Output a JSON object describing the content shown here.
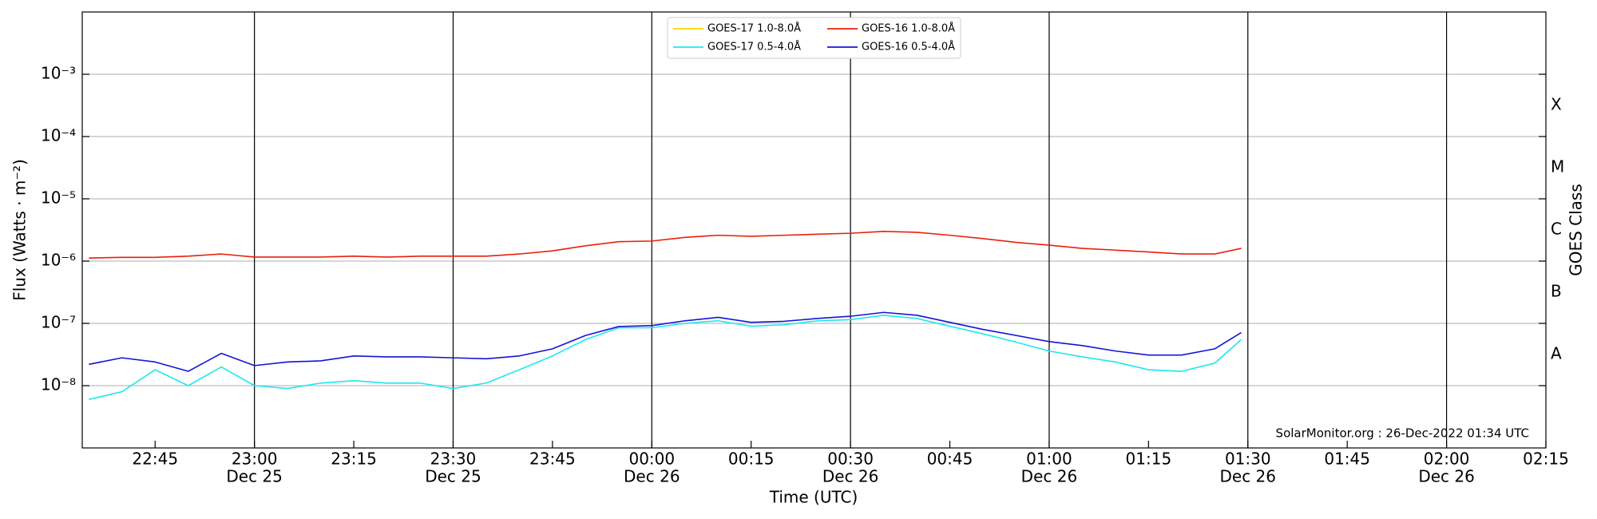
{
  "chart_data": {
    "type": "line",
    "yscale": "log",
    "ylabel": "Flux (Watts · m⁻²)",
    "xlabel": "Time (UTC)",
    "y2label": "GOES Class",
    "goes_classes": [
      "A",
      "B",
      "C",
      "M",
      "X"
    ],
    "annotation": "SolarMonitor.org : 26-Dec-2022 01:34 UTC",
    "legend": "upper center",
    "grid": true,
    "xlim": [
      "Dec 25 22:34",
      "Dec 26 02:15"
    ],
    "ylim": [
      1e-09,
      0.01
    ],
    "yticks": [
      {
        "value": 1e-08,
        "label": "10⁻⁸"
      },
      {
        "value": 1e-07,
        "label": "10⁻⁷"
      },
      {
        "value": 1e-06,
        "label": "10⁻⁶"
      },
      {
        "value": 1e-05,
        "label": "10⁻⁵"
      },
      {
        "value": 0.0001,
        "label": "10⁻⁴"
      },
      {
        "value": 0.001,
        "label": "10⁻³"
      }
    ],
    "xticks": [
      {
        "value": "Dec 25 22:45",
        "label": "22:45"
      },
      {
        "value": "Dec 25 23:00",
        "label": "23:00"
      },
      {
        "value": "Dec 25 23:15",
        "label": "23:15"
      },
      {
        "value": "Dec 25 23:30",
        "label": "23:30"
      },
      {
        "value": "Dec 25 23:45",
        "label": "23:45"
      },
      {
        "value": "Dec 26 00:00",
        "label": "00:00"
      },
      {
        "value": "Dec 26 00:15",
        "label": "00:15"
      },
      {
        "value": "Dec 26 00:30",
        "label": "00:30"
      },
      {
        "value": "Dec 26 00:45",
        "label": "00:45"
      },
      {
        "value": "Dec 26 01:00",
        "label": "01:00"
      },
      {
        "value": "Dec 26 01:15",
        "label": "01:15"
      },
      {
        "value": "Dec 26 01:30",
        "label": "01:30"
      },
      {
        "value": "Dec 26 01:45",
        "label": "01:45"
      },
      {
        "value": "Dec 26 02:00",
        "label": "02:00"
      },
      {
        "value": "Dec 26 02:15",
        "label": "02:15"
      }
    ],
    "xtick_dates": [
      null,
      "Dec 25",
      null,
      "Dec 25",
      null,
      "Dec 26",
      null,
      "Dec 26",
      null,
      "Dec 26",
      null,
      "Dec 26",
      null,
      "Dec 26",
      null
    ],
    "x": [
      "Dec 25 22:35",
      "Dec 25 22:40",
      "Dec 25 22:45",
      "Dec 25 22:50",
      "Dec 25 22:55",
      "Dec 25 23:00",
      "Dec 25 23:05",
      "Dec 25 23:10",
      "Dec 25 23:15",
      "Dec 25 23:20",
      "Dec 25 23:25",
      "Dec 25 23:30",
      "Dec 25 23:35",
      "Dec 25 23:40",
      "Dec 25 23:45",
      "Dec 25 23:50",
      "Dec 25 23:55",
      "Dec 26 00:00",
      "Dec 26 00:05",
      "Dec 26 00:10",
      "Dec 26 00:15",
      "Dec 26 00:20",
      "Dec 26 00:25",
      "Dec 26 00:30",
      "Dec 26 00:35",
      "Dec 26 00:40",
      "Dec 26 00:45",
      "Dec 26 00:50",
      "Dec 26 00:55",
      "Dec 26 01:00",
      "Dec 26 01:05",
      "Dec 26 01:10",
      "Dec 26 01:15",
      "Dec 26 01:20",
      "Dec 26 01:25",
      "Dec 26 01:29"
    ],
    "series": [
      {
        "name": "GOES-17 1.0-8.0Å",
        "color": "#ffd700",
        "values": [
          null,
          null,
          null,
          null,
          null,
          null,
          null,
          null,
          null,
          null,
          null,
          null,
          null,
          null,
          null,
          null,
          null,
          null,
          null,
          null,
          null,
          null,
          null,
          null,
          null,
          null,
          null,
          null,
          null,
          null,
          null,
          null,
          null,
          null,
          null,
          null
        ]
      },
      {
        "name": "GOES-17 0.5-4.0Å",
        "color": "#1ee8f0",
        "values": [
          6e-09,
          8e-09,
          1.8e-08,
          1e-08,
          2e-08,
          1e-08,
          9e-09,
          1.1e-08,
          1.2e-08,
          1.1e-08,
          1.1e-08,
          9e-09,
          1.1e-08,
          1.8e-08,
          3e-08,
          5.5e-08,
          8.5e-08,
          8.5e-08,
          1e-07,
          1.1e-07,
          9e-08,
          9.5e-08,
          1.1e-07,
          1.15e-07,
          1.35e-07,
          1.2e-07,
          9e-08,
          6.8e-08,
          5e-08,
          3.6e-08,
          2.9e-08,
          2.4e-08,
          1.8e-08,
          1.7e-08,
          2.3e-08,
          5.5e-08
        ]
      },
      {
        "name": "GOES-16 1.0-8.0Å",
        "color": "#e8200a",
        "values": [
          1.12e-06,
          1.15e-06,
          1.15e-06,
          1.2e-06,
          1.3e-06,
          1.16e-06,
          1.16e-06,
          1.16e-06,
          1.2e-06,
          1.16e-06,
          1.2e-06,
          1.2e-06,
          1.2e-06,
          1.3e-06,
          1.46e-06,
          1.76e-06,
          2.05e-06,
          2.1e-06,
          2.4e-06,
          2.6e-06,
          2.5e-06,
          2.6e-06,
          2.7e-06,
          2.8e-06,
          3e-06,
          2.9e-06,
          2.6e-06,
          2.3e-06,
          2e-06,
          1.8e-06,
          1.6e-06,
          1.5e-06,
          1.4e-06,
          1.3e-06,
          1.3e-06,
          1.6e-06
        ]
      },
      {
        "name": "GOES-16 0.5-4.0Å",
        "color": "#1414d8",
        "values": [
          2.2e-08,
          2.8e-08,
          2.4e-08,
          1.7e-08,
          3.3e-08,
          2.1e-08,
          2.4e-08,
          2.5e-08,
          3e-08,
          2.9e-08,
          2.9e-08,
          2.8e-08,
          2.7e-08,
          3e-08,
          3.9e-08,
          6.4e-08,
          8.9e-08,
          9.2e-08,
          1.1e-07,
          1.25e-07,
          1.04e-07,
          1.08e-07,
          1.2e-07,
          1.3e-07,
          1.5e-07,
          1.35e-07,
          1.04e-07,
          8e-08,
          6.4e-08,
          5.1e-08,
          4.4e-08,
          3.6e-08,
          3.1e-08,
          3.1e-08,
          3.9e-08,
          7.1e-08
        ]
      }
    ]
  }
}
